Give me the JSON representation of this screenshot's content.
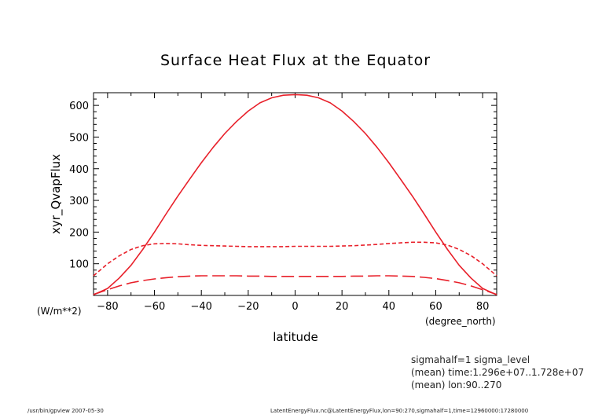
{
  "chart_data": {
    "type": "line",
    "title": "Surface Heat Flux at the Equator",
    "xlabel": "latitude",
    "ylabel": "xyr_QvapFlux",
    "x_units": "(degree_north)",
    "y_units": "(W/m**2)",
    "xlim": [
      -86,
      86
    ],
    "ylim": [
      0,
      640
    ],
    "x_ticks": [
      -80,
      -60,
      -40,
      -20,
      0,
      20,
      40,
      60,
      80
    ],
    "y_ticks": [
      100,
      200,
      300,
      400,
      500,
      600
    ],
    "grid": false,
    "line_color": "#e8202a",
    "x": [
      -86,
      -80,
      -75,
      -70,
      -65,
      -60,
      -55,
      -50,
      -45,
      -40,
      -35,
      -30,
      -25,
      -20,
      -15,
      -10,
      -5,
      0,
      5,
      10,
      15,
      20,
      25,
      30,
      35,
      40,
      45,
      50,
      55,
      60,
      65,
      70,
      75,
      80,
      86
    ],
    "series": [
      {
        "line_style": "solid",
        "values": [
          2,
          22,
          55,
          95,
          145,
          200,
          258,
          314,
          367,
          419,
          467,
          511,
          549,
          582,
          608,
          624,
          632,
          634,
          632,
          624,
          608,
          582,
          549,
          511,
          467,
          419,
          367,
          314,
          258,
          200,
          145,
          95,
          55,
          22,
          2
        ]
      },
      {
        "line_style": "short-dash",
        "values": [
          62,
          100,
          125,
          145,
          157,
          163,
          164,
          163,
          160,
          158,
          157,
          156,
          155,
          154,
          154,
          154,
          154,
          155,
          155,
          155,
          155,
          156,
          157,
          159,
          161,
          164,
          166,
          168,
          168,
          166,
          159,
          145,
          126,
          100,
          62
        ]
      },
      {
        "line_style": "long-dash",
        "values": [
          3,
          18,
          30,
          40,
          47,
          52,
          56,
          59,
          61,
          62,
          62,
          62,
          62,
          61,
          61,
          60,
          60,
          60,
          60,
          60,
          60,
          60,
          61,
          61,
          62,
          62,
          61,
          60,
          57,
          53,
          47,
          40,
          30,
          18,
          3
        ]
      }
    ]
  },
  "annotations": {
    "line1": "sigmahalf=1 sigma_level",
    "line2": "(mean) time:1.296e+07..1.728e+07",
    "line3": "(mean) lon:90..270"
  },
  "footer": {
    "left": "/usr/bin/gpview  2007-05-30",
    "right": "LatentEnergyFlux.nc@LatentEnergyFlux,lon=90:270,sigmahalf=1,time=12960000:17280000"
  }
}
